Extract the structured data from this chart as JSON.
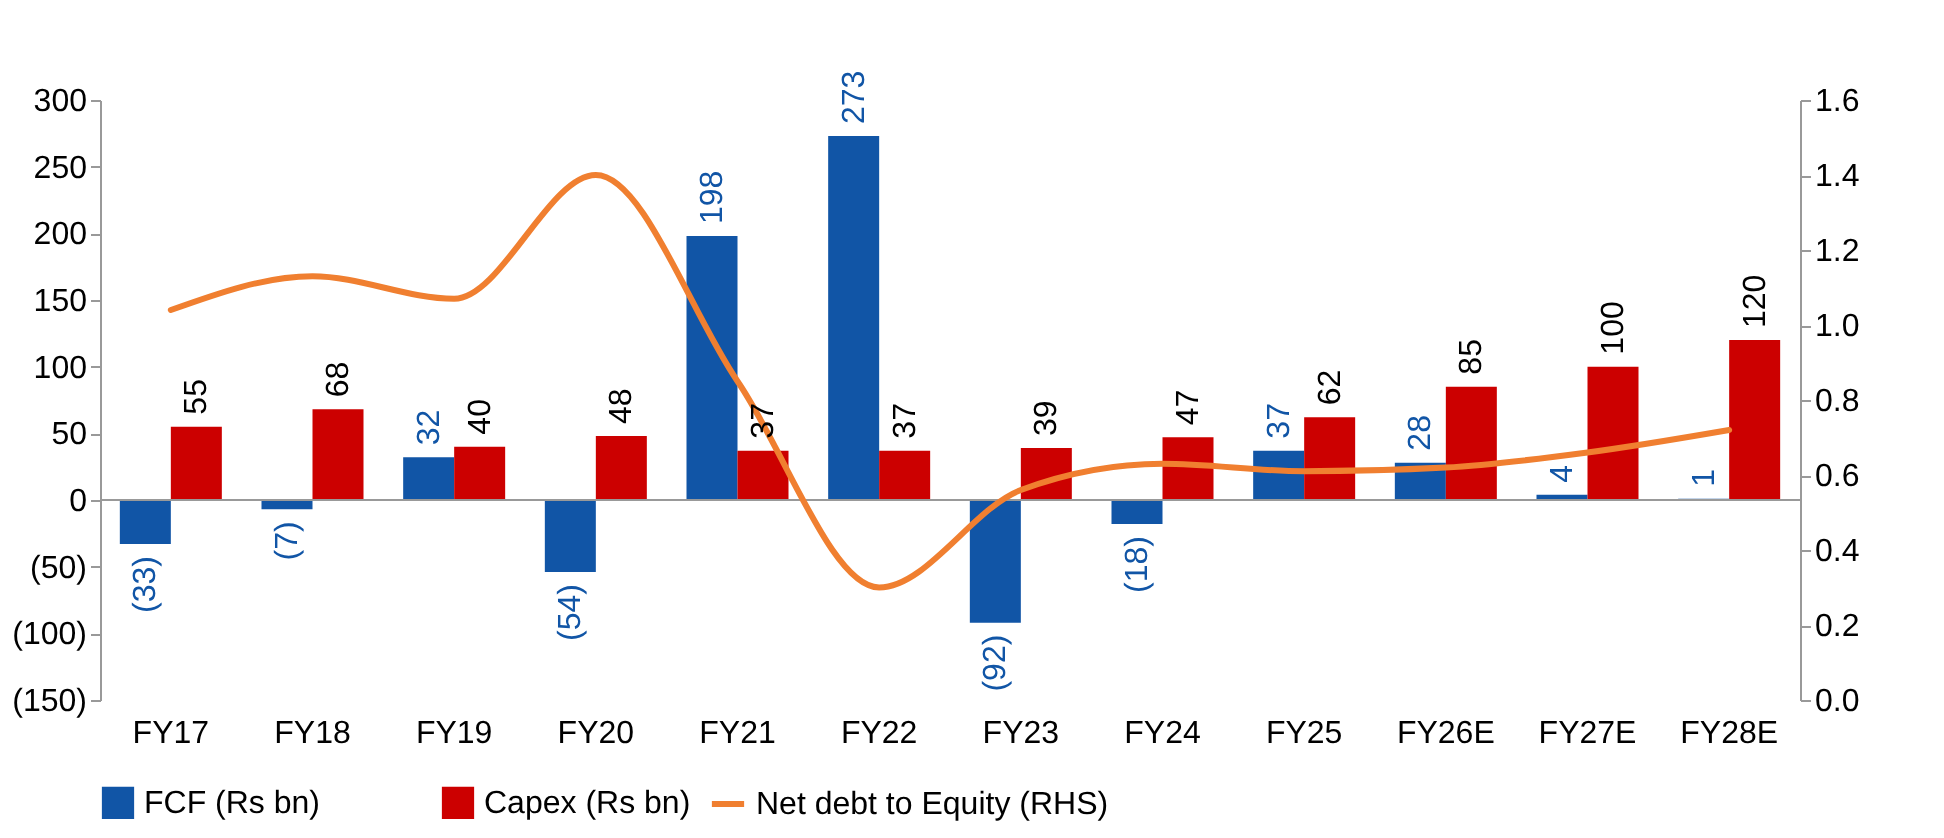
{
  "chart_data": {
    "type": "bar",
    "categories": [
      "FY17",
      "FY18",
      "FY19",
      "FY20",
      "FY21",
      "FY22",
      "FY23",
      "FY24",
      "FY25",
      "FY26E",
      "FY27E",
      "FY28E"
    ],
    "series": [
      {
        "name": "FCF (Rs bn)",
        "color": "#1155a6",
        "values": [
          -33,
          -7,
          32,
          -54,
          198,
          273,
          -92,
          -18,
          37,
          28,
          4,
          1
        ],
        "value_labels": [
          "(33)",
          "(7)",
          "32",
          "(54)",
          "198",
          "273",
          "(92)",
          "(18)",
          "37",
          "28",
          "4",
          "1"
        ]
      },
      {
        "name": "Capex (Rs bn)",
        "color": "#cc0000",
        "values": [
          55,
          68,
          40,
          48,
          37,
          37,
          39,
          47,
          62,
          85,
          100,
          120
        ],
        "value_labels": [
          "55",
          "68",
          "40",
          "48",
          "37",
          "37",
          "39",
          "47",
          "62",
          "85",
          "100",
          "120"
        ]
      },
      {
        "name": "Net debt to Equity (RHS)",
        "type": "line",
        "axis": "y2",
        "color": "#f07f30",
        "values": [
          1.04,
          1.13,
          1.07,
          1.4,
          0.85,
          0.3,
          0.56,
          0.63,
          0.61,
          0.62,
          0.66,
          0.72
        ]
      }
    ],
    "ylim": [
      -150,
      300
    ],
    "yticks": [
      {
        "value": -150,
        "label": "(150)"
      },
      {
        "value": -100,
        "label": "(100)"
      },
      {
        "value": -50,
        "label": "(50)"
      },
      0,
      50,
      100,
      150,
      200,
      250,
      300
    ],
    "y2lim": [
      0,
      1.6
    ],
    "y2ticks": [
      {
        "value": 0,
        "label": "0.0"
      },
      {
        "value": 0.2,
        "label": "0.2"
      },
      {
        "value": 0.4,
        "label": "0.4"
      },
      {
        "value": 0.6,
        "label": "0.6"
      },
      {
        "value": 0.8,
        "label": "0.8"
      },
      {
        "value": 1,
        "label": "1.0"
      },
      {
        "value": 1.2,
        "label": "1.2"
      },
      {
        "value": 1.4,
        "label": "1.4"
      },
      {
        "value": 1.6,
        "label": "1.6"
      }
    ],
    "ref_lines": [
      {
        "axis": "y",
        "value": 0,
        "color": "#999999"
      }
    ],
    "legend": "bottom",
    "grid": false
  }
}
